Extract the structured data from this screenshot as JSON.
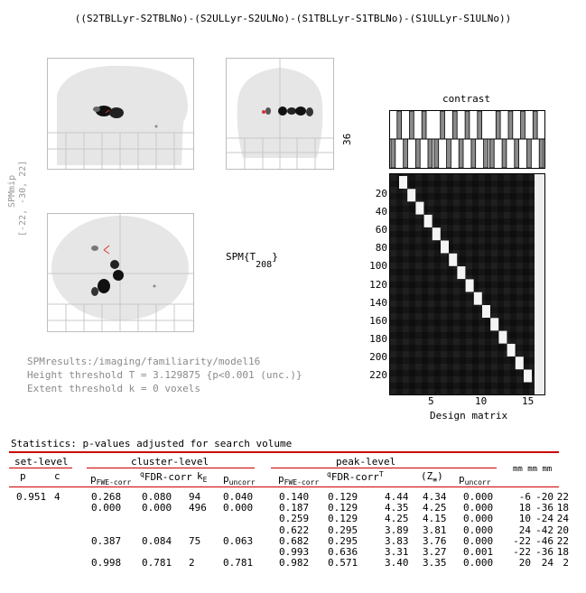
{
  "title": "((S2TBLLyr-S2TBLNo)-(S2ULLyr-S2ULNo)-(S1TBLLyr-S1TBLNo)-(S1ULLyr-S1ULNo))",
  "spm_mip": {
    "label": "SPMmip",
    "coords": "[-22, -30, 22]"
  },
  "spm_t": {
    "prefix": "SPM{T",
    "subscript": "208",
    "suffix": "}"
  },
  "contrast": {
    "label": "contrast",
    "axis_value": "36",
    "weights": [
      0,
      1,
      0,
      1,
      0,
      1,
      0,
      0,
      1,
      0,
      1,
      0,
      1,
      0,
      1,
      0,
      0,
      1,
      0,
      1,
      0,
      1,
      0,
      1,
      0
    ]
  },
  "design_matrix": {
    "label": "Design matrix",
    "y_ticks": [
      "20",
      "40",
      "60",
      "80",
      "100",
      "120",
      "140",
      "160",
      "180",
      "200",
      "220"
    ],
    "x_ticks": [
      "5",
      "10",
      "15"
    ]
  },
  "footer": {
    "results_path": "SPMresults:/imaging/familiarity/model16",
    "height_threshold": "Height threshold T = 3.129875  {p<0.001 (unc.)}",
    "extent_threshold": "Extent threshold k = 0 voxels"
  },
  "statistics": {
    "title": "Statistics:  p-values adjusted for search volume",
    "groups": {
      "set_level": "set-level",
      "cluster_level": "cluster-level",
      "peak_level": "peak-level"
    },
    "headers": {
      "p": "p",
      "c": "c",
      "pfwe_main": "p",
      "pfwe_sub": "FWE-corr",
      "qfdr_main": "q",
      "qfdr_sub": "FDR-corr",
      "ke_main": "k",
      "ke_sub": "E",
      "punc_main": "p",
      "punc_sub": "uncorr",
      "peak_pfwe_main": "p",
      "peak_pfwe_sub": "FWE-corr",
      "peak_qfdr_main": "q",
      "peak_qfdr_sub": "FDR-corr",
      "t": "T",
      "ze_main": "(Z",
      "ze_sub": "≡",
      "ze_end": ")",
      "peak_punc_main": "p",
      "peak_punc_sub": "uncorr",
      "mm": "mm mm mm"
    },
    "rows": [
      {
        "set_p": "0.951",
        "set_c": "4",
        "c_pfwe": "0.268",
        "c_qfdr": "0.080",
        "c_ke": "94",
        "c_punc": "0.040",
        "p_pfwe": "0.140",
        "p_qfdr": "0.129",
        "t": "4.44",
        "z": "4.34",
        "p_punc": "0.000",
        "mm1": "-6",
        "mm2": "-20",
        "mm3": "22"
      },
      {
        "set_p": "",
        "set_c": "",
        "c_pfwe": "0.000",
        "c_qfdr": "0.000",
        "c_ke": "496",
        "c_punc": "0.000",
        "p_pfwe": "0.187",
        "p_qfdr": "0.129",
        "t": "4.35",
        "z": "4.25",
        "p_punc": "0.000",
        "mm1": "18",
        "mm2": "-36",
        "mm3": "18"
      },
      {
        "set_p": "",
        "set_c": "",
        "c_pfwe": "",
        "c_qfdr": "",
        "c_ke": "",
        "c_punc": "",
        "p_pfwe": "0.259",
        "p_qfdr": "0.129",
        "t": "4.25",
        "z": "4.15",
        "p_punc": "0.000",
        "mm1": "10",
        "mm2": "-24",
        "mm3": "24"
      },
      {
        "set_p": "",
        "set_c": "",
        "c_pfwe": "",
        "c_qfdr": "",
        "c_ke": "",
        "c_punc": "",
        "p_pfwe": "0.622",
        "p_qfdr": "0.295",
        "t": "3.89",
        "z": "3.81",
        "p_punc": "0.000",
        "mm1": "24",
        "mm2": "-42",
        "mm3": "20"
      },
      {
        "set_p": "",
        "set_c": "",
        "c_pfwe": "0.387",
        "c_qfdr": "0.084",
        "c_ke": "75",
        "c_punc": "0.063",
        "p_pfwe": "0.682",
        "p_qfdr": "0.295",
        "t": "3.83",
        "z": "3.76",
        "p_punc": "0.000",
        "mm1": "-22",
        "mm2": "-46",
        "mm3": "22"
      },
      {
        "set_p": "",
        "set_c": "",
        "c_pfwe": "",
        "c_qfdr": "",
        "c_ke": "",
        "c_punc": "",
        "p_pfwe": "0.993",
        "p_qfdr": "0.636",
        "t": "3.31",
        "z": "3.27",
        "p_punc": "0.001",
        "mm1": "-22",
        "mm2": "-36",
        "mm3": "18"
      },
      {
        "set_p": "",
        "set_c": "",
        "c_pfwe": "0.998",
        "c_qfdr": "0.781",
        "c_ke": "2",
        "c_punc": "0.781",
        "p_pfwe": "0.982",
        "p_qfdr": "0.571",
        "t": "3.40",
        "z": "3.35",
        "p_punc": "0.000",
        "mm1": "20",
        "mm2": "24",
        "mm3": "2"
      }
    ]
  }
}
